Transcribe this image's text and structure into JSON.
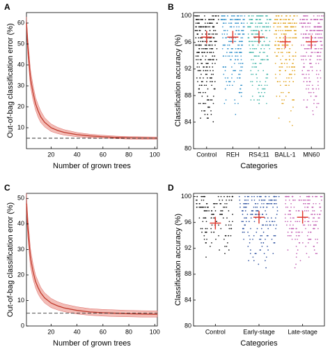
{
  "chart_data": [
    {
      "panel": "A",
      "type": "line",
      "xlabel": "Number of grown trees",
      "ylabel": "Out-of-bag classification error (%)",
      "xlim": [
        1,
        102
      ],
      "ylim": [
        0,
        65
      ],
      "xticks": [
        "20",
        "40",
        "60",
        "80",
        "100"
      ],
      "yticks": [
        "10",
        "20",
        "30",
        "40",
        "50",
        "60"
      ],
      "baseline": 5,
      "series": [
        {
          "x": [
            1,
            2,
            4,
            6,
            8,
            10,
            12,
            15,
            20,
            25,
            30,
            40,
            50,
            60,
            70,
            80,
            90,
            100,
            102
          ],
          "y": [
            60,
            49,
            34,
            27,
            21.5,
            18,
            15.2,
            12.6,
            10,
            8.7,
            7.8,
            6.7,
            6.1,
            5.7,
            5.4,
            5.2,
            5.1,
            5.0,
            5.0
          ],
          "lower": [
            57,
            45,
            30,
            23.5,
            18.5,
            15,
            12.5,
            10.4,
            8.2,
            7.2,
            6.5,
            5.7,
            5.3,
            5.0,
            4.8,
            4.6,
            4.5,
            4.5,
            4.5
          ],
          "upper": [
            63,
            53,
            38,
            30.5,
            24.5,
            21,
            18,
            14.8,
            11.8,
            10.2,
            9.1,
            7.7,
            6.9,
            6.4,
            6.0,
            5.8,
            5.7,
            5.6,
            5.6
          ]
        }
      ]
    },
    {
      "panel": "B",
      "type": "scatter",
      "xlabel": "Categories",
      "ylabel": "Classification accuracy (%)",
      "ylim": [
        80,
        100.5
      ],
      "yticks": [
        "80",
        "84",
        "88",
        "92",
        "96",
        "100"
      ],
      "categories": [
        "Control",
        "REH",
        "RS4;11",
        "BALL-1",
        "MN60"
      ],
      "colors": [
        "#111111",
        "#2f8fc9",
        "#3fb3a6",
        "#e0a21c",
        "#c05ab0"
      ],
      "means": [
        96.8,
        96.8,
        96.8,
        96.1,
        96.1
      ],
      "mins": [
        82.5,
        84.5,
        84.5,
        83.5,
        84.5
      ]
    },
    {
      "panel": "C",
      "type": "line",
      "xlabel": "Number of grown trees",
      "ylabel": "Out-of-bag classification error (%)",
      "xlim": [
        1,
        102
      ],
      "ylim": [
        0,
        52
      ],
      "xticks": [
        "20",
        "40",
        "60",
        "80",
        "100"
      ],
      "yticks": [
        "0",
        "10",
        "20",
        "30",
        "40",
        "50"
      ],
      "baseline": 5,
      "series": [
        {
          "x": [
            1,
            2,
            4,
            6,
            8,
            10,
            12,
            15,
            20,
            25,
            30,
            40,
            50,
            60,
            70,
            80,
            90,
            100,
            102
          ],
          "y": [
            48,
            39,
            27,
            21.5,
            17.5,
            15,
            13,
            11,
            9,
            7.9,
            7.1,
            6.1,
            5.5,
            5.2,
            5.0,
            4.8,
            4.7,
            4.6,
            4.6
          ],
          "lower": [
            44,
            35,
            23.5,
            18.5,
            15,
            12.5,
            10.8,
            9.0,
            7.2,
            6.3,
            5.6,
            4.7,
            4.2,
            3.9,
            3.7,
            3.6,
            3.5,
            3.5,
            3.5
          ],
          "upper": [
            52,
            43,
            30.5,
            24.5,
            20,
            17.5,
            15.2,
            13,
            10.8,
            9.5,
            8.6,
            7.5,
            6.8,
            6.5,
            6.3,
            6.1,
            6.0,
            5.9,
            5.9
          ]
        }
      ]
    },
    {
      "panel": "D",
      "type": "scatter",
      "xlabel": "Categories",
      "ylabel": "Classification accuracy (%)",
      "ylim": [
        80,
        100.5
      ],
      "yticks": [
        "80",
        "84",
        "88",
        "92",
        "96",
        "100"
      ],
      "categories": [
        "Control",
        "Early-stage",
        "Late-stage"
      ],
      "colors": [
        "#111111",
        "#2b4f9e",
        "#c05ab0"
      ],
      "means": [
        95.9,
        96.8,
        96.8
      ],
      "mins": [
        90.5,
        88.0,
        89.0
      ]
    }
  ],
  "panel_labels": [
    "A",
    "B",
    "C",
    "D"
  ]
}
